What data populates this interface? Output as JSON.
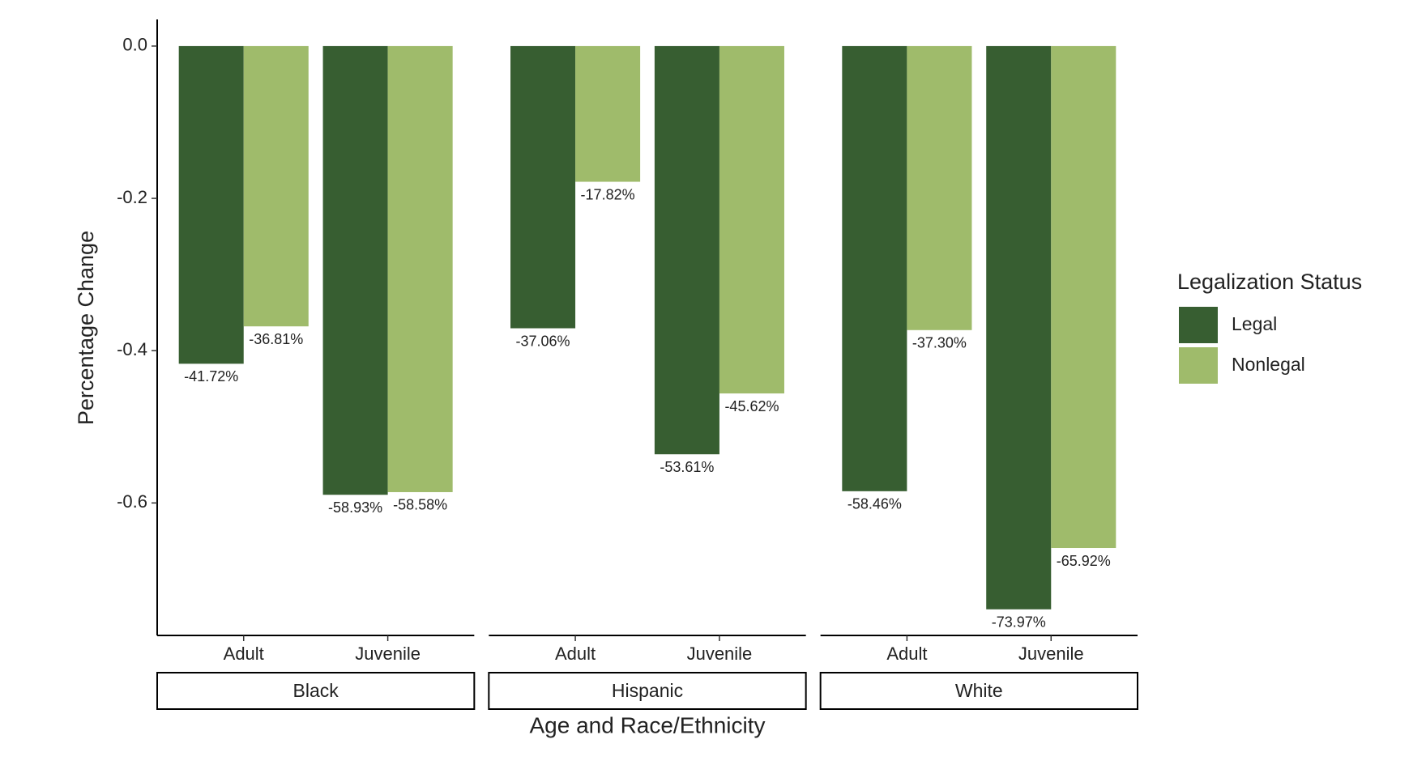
{
  "chart_data": {
    "type": "bar",
    "y_label": "Percentage Change",
    "x_label": "Age and Race/Ethnicity",
    "legend_title": "Legalization Status",
    "legend_position": "right",
    "facets": [
      "Black",
      "Hispanic",
      "White"
    ],
    "categories": [
      "Adult",
      "Juvenile"
    ],
    "ylim": [
      -0.774,
      0.035
    ],
    "yticks": [
      {
        "value": 0,
        "label": "0.0"
      },
      -0.2,
      -0.4,
      -0.6
    ],
    "series": [
      {
        "name": "Legal",
        "color": "#375e31",
        "values": [
          [
            -0.4172,
            -0.5893
          ],
          [
            -0.3706,
            -0.5361
          ],
          [
            -0.5846,
            -0.7397
          ]
        ],
        "value_labels": [
          [
            "-41.72%",
            "-58.93%"
          ],
          [
            "-37.06%",
            "-53.61%"
          ],
          [
            "-58.46%",
            "-73.97%"
          ]
        ]
      },
      {
        "name": "Nonlegal",
        "color": "#9fbb6b",
        "values": [
          [
            -0.3681,
            -0.5858
          ],
          [
            -0.1782,
            -0.4562
          ],
          [
            -0.373,
            -0.6592
          ]
        ],
        "value_labels": [
          [
            "-36.81%",
            "-58.58%"
          ],
          [
            "-17.82%",
            "-45.62%"
          ],
          [
            "-37.30%",
            "-65.92%"
          ]
        ]
      }
    ]
  }
}
